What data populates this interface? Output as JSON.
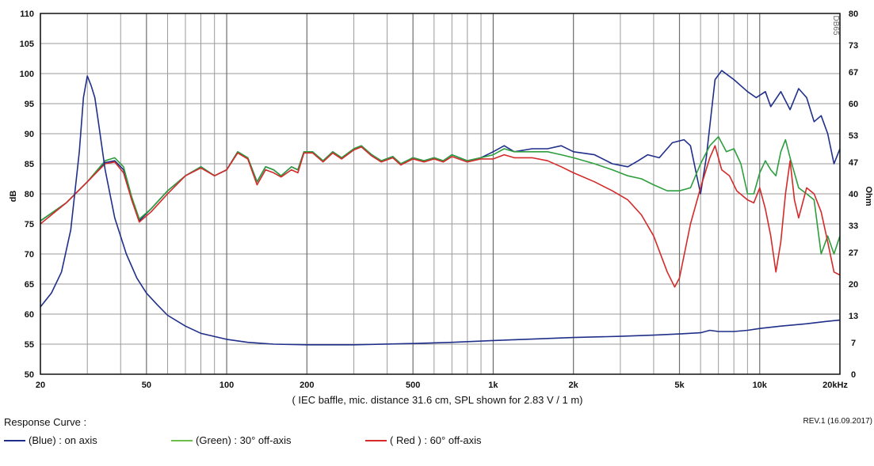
{
  "chart_data": {
    "type": "line",
    "x_scale": "log",
    "xlim": [
      20,
      20000
    ],
    "ylim": [
      50,
      110
    ],
    "y2lim": [
      0,
      80
    ],
    "xlabel": "( IEC baffle, mic. distance 31.6 cm, SPL shown for 2.83 V / 1 m)",
    "ylabel": "dB",
    "y2label": "Ohm",
    "watermark": "DB65",
    "grid": true,
    "x_ticks": [
      {
        "value": 20,
        "label": "20"
      },
      {
        "value": 50,
        "label": "50"
      },
      {
        "value": 100,
        "label": "100"
      },
      {
        "value": 200,
        "label": "200"
      },
      {
        "value": 500,
        "label": "500"
      },
      {
        "value": 1000,
        "label": "1k"
      },
      {
        "value": 2000,
        "label": "2k"
      },
      {
        "value": 5000,
        "label": "5k"
      },
      {
        "value": 10000,
        "label": "10k"
      },
      {
        "value": 20000,
        "label": "20kHz"
      }
    ],
    "x_minor_grid": [
      30,
      40,
      60,
      70,
      80,
      90,
      300,
      400,
      600,
      700,
      800,
      900,
      3000,
      4000,
      6000,
      7000,
      8000,
      9000
    ],
    "y_ticks": [
      {
        "value": 110,
        "label": "110"
      },
      {
        "value": 105,
        "label": "105"
      },
      {
        "value": 100,
        "label": "100"
      },
      {
        "value": 95,
        "label": "95"
      },
      {
        "value": 90,
        "label": "90"
      },
      {
        "value": 85,
        "label": "85"
      },
      {
        "value": 80,
        "label": "80"
      },
      {
        "value": 75,
        "label": "75"
      },
      {
        "value": 70,
        "label": "70"
      },
      {
        "value": 65,
        "label": "65"
      },
      {
        "value": 60,
        "label": "60"
      },
      {
        "value": 55,
        "label": "55"
      },
      {
        "value": 50,
        "label": "50"
      }
    ],
    "y2_ticks": [
      {
        "value": 80,
        "label": "80"
      },
      {
        "value": 73,
        "label": "73"
      },
      {
        "value": 67,
        "label": "67"
      },
      {
        "value": 60,
        "label": "60"
      },
      {
        "value": 53,
        "label": "53"
      },
      {
        "value": 47,
        "label": "47"
      },
      {
        "value": 40,
        "label": "40"
      },
      {
        "value": 33,
        "label": "33"
      },
      {
        "value": 27,
        "label": "27"
      },
      {
        "value": 20,
        "label": "20"
      },
      {
        "value": 13,
        "label": "13"
      },
      {
        "value": 7,
        "label": "7"
      },
      {
        "value": 0,
        "label": "0"
      }
    ],
    "series": [
      {
        "name": "(Blue)  : on axis",
        "color": "#1f2f8a",
        "axis": "left",
        "points": [
          [
            20,
            75.5
          ],
          [
            25,
            78.5
          ],
          [
            30,
            82
          ],
          [
            35,
            85.2
          ],
          [
            38,
            85.5
          ],
          [
            41,
            84
          ],
          [
            44,
            79
          ],
          [
            47,
            75.5
          ],
          [
            52,
            77.5
          ],
          [
            60,
            80.5
          ],
          [
            70,
            83
          ],
          [
            80,
            84.5
          ],
          [
            90,
            83
          ],
          [
            100,
            84
          ],
          [
            110,
            87
          ],
          [
            120,
            86
          ],
          [
            130,
            82
          ],
          [
            140,
            84.5
          ],
          [
            150,
            84
          ],
          [
            160,
            83
          ],
          [
            175,
            84.5
          ],
          [
            185,
            84
          ],
          [
            195,
            87
          ],
          [
            210,
            87
          ],
          [
            230,
            85.5
          ],
          [
            250,
            87
          ],
          [
            270,
            86
          ],
          [
            300,
            87.5
          ],
          [
            320,
            88
          ],
          [
            350,
            86.5
          ],
          [
            380,
            85.5
          ],
          [
            420,
            86.2
          ],
          [
            450,
            85
          ],
          [
            500,
            86
          ],
          [
            550,
            85.5
          ],
          [
            600,
            86
          ],
          [
            650,
            85.5
          ],
          [
            700,
            86.5
          ],
          [
            800,
            85.5
          ],
          [
            900,
            86
          ],
          [
            1000,
            87
          ],
          [
            1100,
            88
          ],
          [
            1200,
            87
          ],
          [
            1400,
            87.5
          ],
          [
            1600,
            87.5
          ],
          [
            1800,
            88
          ],
          [
            2000,
            87
          ],
          [
            2400,
            86.5
          ],
          [
            2800,
            85
          ],
          [
            3200,
            84.5
          ],
          [
            3500,
            85.5
          ],
          [
            3800,
            86.5
          ],
          [
            4200,
            86
          ],
          [
            4700,
            88.5
          ],
          [
            5200,
            89
          ],
          [
            5500,
            88
          ],
          [
            6000,
            80
          ],
          [
            6300,
            86
          ],
          [
            6800,
            99
          ],
          [
            7200,
            100.5
          ],
          [
            8000,
            99
          ],
          [
            9000,
            97
          ],
          [
            9700,
            96
          ],
          [
            10500,
            97
          ],
          [
            11000,
            94.5
          ],
          [
            12000,
            97
          ],
          [
            13000,
            94
          ],
          [
            14000,
            97.5
          ],
          [
            15000,
            96
          ],
          [
            16000,
            92
          ],
          [
            17000,
            93
          ],
          [
            18000,
            90
          ],
          [
            19000,
            85
          ],
          [
            20000,
            87.5
          ]
        ]
      },
      {
        "name": "(Green) : 30° off-axis",
        "color": "#2e9e3e",
        "axis": "left",
        "points": [
          [
            20,
            75.5
          ],
          [
            25,
            78.5
          ],
          [
            30,
            82
          ],
          [
            35,
            85.5
          ],
          [
            38,
            86
          ],
          [
            41,
            84.5
          ],
          [
            44,
            79.5
          ],
          [
            47,
            75.8
          ],
          [
            52,
            77.5
          ],
          [
            60,
            80.5
          ],
          [
            70,
            83
          ],
          [
            80,
            84.5
          ],
          [
            90,
            83
          ],
          [
            100,
            84
          ],
          [
            110,
            87
          ],
          [
            120,
            86
          ],
          [
            130,
            82
          ],
          [
            140,
            84.5
          ],
          [
            150,
            84
          ],
          [
            160,
            83
          ],
          [
            175,
            84.5
          ],
          [
            185,
            84
          ],
          [
            195,
            87
          ],
          [
            210,
            87
          ],
          [
            230,
            85.5
          ],
          [
            250,
            87
          ],
          [
            270,
            86
          ],
          [
            300,
            87.5
          ],
          [
            320,
            88
          ],
          [
            350,
            86.5
          ],
          [
            380,
            85.5
          ],
          [
            420,
            86.2
          ],
          [
            450,
            85
          ],
          [
            500,
            86
          ],
          [
            550,
            85.5
          ],
          [
            600,
            86
          ],
          [
            650,
            85.5
          ],
          [
            700,
            86.5
          ],
          [
            800,
            85.5
          ],
          [
            900,
            86
          ],
          [
            1000,
            86.5
          ],
          [
            1100,
            87.5
          ],
          [
            1200,
            87
          ],
          [
            1400,
            87
          ],
          [
            1600,
            87
          ],
          [
            1800,
            86.5
          ],
          [
            2000,
            86
          ],
          [
            2400,
            85
          ],
          [
            2800,
            84
          ],
          [
            3200,
            83
          ],
          [
            3600,
            82.5
          ],
          [
            4000,
            81.5
          ],
          [
            4500,
            80.5
          ],
          [
            5000,
            80.5
          ],
          [
            5500,
            81
          ],
          [
            6000,
            85
          ],
          [
            6500,
            88
          ],
          [
            7000,
            89.5
          ],
          [
            7500,
            87
          ],
          [
            8000,
            87.5
          ],
          [
            8500,
            85
          ],
          [
            9000,
            80
          ],
          [
            9500,
            80
          ],
          [
            10000,
            83.5
          ],
          [
            10500,
            85.5
          ],
          [
            11000,
            84
          ],
          [
            11500,
            83
          ],
          [
            12000,
            87
          ],
          [
            12500,
            89
          ],
          [
            13000,
            86
          ],
          [
            14000,
            81
          ],
          [
            15000,
            80
          ],
          [
            16000,
            79
          ],
          [
            17000,
            70
          ],
          [
            18000,
            73
          ],
          [
            19000,
            70
          ],
          [
            20000,
            73
          ]
        ]
      },
      {
        "name": "( Red ) : 60° off-axis",
        "color": "#d42a2a",
        "axis": "left",
        "points": [
          [
            20,
            75
          ],
          [
            25,
            78.5
          ],
          [
            30,
            82
          ],
          [
            35,
            85
          ],
          [
            38,
            85.3
          ],
          [
            41,
            83.5
          ],
          [
            44,
            79
          ],
          [
            47,
            75.3
          ],
          [
            52,
            77
          ],
          [
            60,
            80
          ],
          [
            70,
            83
          ],
          [
            80,
            84.3
          ],
          [
            90,
            83
          ],
          [
            100,
            84
          ],
          [
            110,
            86.8
          ],
          [
            120,
            85.8
          ],
          [
            130,
            81.5
          ],
          [
            140,
            84
          ],
          [
            150,
            83.5
          ],
          [
            160,
            82.8
          ],
          [
            175,
            84
          ],
          [
            185,
            83.5
          ],
          [
            195,
            86.8
          ],
          [
            210,
            86.8
          ],
          [
            230,
            85.3
          ],
          [
            250,
            86.8
          ],
          [
            270,
            85.8
          ],
          [
            300,
            87.3
          ],
          [
            320,
            87.8
          ],
          [
            350,
            86.3
          ],
          [
            380,
            85.3
          ],
          [
            420,
            86
          ],
          [
            450,
            84.8
          ],
          [
            500,
            85.8
          ],
          [
            550,
            85.3
          ],
          [
            600,
            85.8
          ],
          [
            650,
            85.3
          ],
          [
            700,
            86.2
          ],
          [
            800,
            85.3
          ],
          [
            900,
            85.8
          ],
          [
            1000,
            85.8
          ],
          [
            1100,
            86.5
          ],
          [
            1200,
            86
          ],
          [
            1400,
            86
          ],
          [
            1600,
            85.5
          ],
          [
            1800,
            84.5
          ],
          [
            2000,
            83.5
          ],
          [
            2400,
            82
          ],
          [
            2800,
            80.5
          ],
          [
            3200,
            79
          ],
          [
            3600,
            76.5
          ],
          [
            4000,
            73
          ],
          [
            4500,
            67
          ],
          [
            4800,
            64.5
          ],
          [
            5000,
            66
          ],
          [
            5500,
            75
          ],
          [
            6000,
            81
          ],
          [
            6500,
            86
          ],
          [
            6800,
            88
          ],
          [
            7200,
            84
          ],
          [
            7700,
            83
          ],
          [
            8200,
            80.5
          ],
          [
            9000,
            79
          ],
          [
            9500,
            78.5
          ],
          [
            10000,
            81
          ],
          [
            10500,
            77.5
          ],
          [
            11000,
            73
          ],
          [
            11500,
            67
          ],
          [
            12000,
            72
          ],
          [
            12500,
            80
          ],
          [
            13000,
            85.5
          ],
          [
            13500,
            79
          ],
          [
            14000,
            76
          ],
          [
            15000,
            81
          ],
          [
            16000,
            80
          ],
          [
            17000,
            77
          ],
          [
            18000,
            72
          ],
          [
            19000,
            67
          ],
          [
            20000,
            66.5
          ]
        ]
      },
      {
        "name": "(Blue)  : on axis",
        "color": "#1f2f8a",
        "axis": "left",
        "points": [
          [
            20,
            61.2
          ],
          [
            22,
            63.5
          ],
          [
            24,
            67
          ],
          [
            26,
            74
          ],
          [
            28,
            87
          ],
          [
            29,
            96
          ],
          [
            30,
            99.6
          ],
          [
            31,
            98
          ],
          [
            32,
            96
          ],
          [
            33,
            92
          ],
          [
            35,
            84
          ],
          [
            38,
            76
          ],
          [
            42,
            70
          ],
          [
            46,
            66
          ],
          [
            50,
            63.5
          ],
          [
            55,
            61.5
          ],
          [
            60,
            59.8
          ],
          [
            70,
            58
          ],
          [
            80,
            56.8
          ],
          [
            100,
            55.8
          ],
          [
            120,
            55.3
          ],
          [
            150,
            55
          ],
          [
            200,
            54.9
          ],
          [
            300,
            54.9
          ],
          [
            500,
            55.1
          ],
          [
            700,
            55.3
          ],
          [
            1000,
            55.6
          ],
          [
            1500,
            55.9
          ],
          [
            2000,
            56.1
          ],
          [
            3000,
            56.3
          ],
          [
            4000,
            56.5
          ],
          [
            5000,
            56.7
          ],
          [
            6000,
            56.9
          ],
          [
            6500,
            57.3
          ],
          [
            7000,
            57.1
          ],
          [
            8000,
            57.1
          ],
          [
            9000,
            57.3
          ],
          [
            10000,
            57.6
          ],
          [
            12000,
            58
          ],
          [
            15000,
            58.4
          ],
          [
            18000,
            58.8
          ],
          [
            20000,
            59
          ]
        ]
      }
    ]
  },
  "footer": {
    "legend_title": "Response Curve :",
    "revision": "REV.1 (16.09.2017)",
    "legend": [
      {
        "label": "(Blue)  : on axis",
        "color": "#1f2f8a"
      },
      {
        "label": "(Green) : 30° off-axis",
        "color": "#6cc04a"
      },
      {
        "label": "( Red ) : 60° off-axis",
        "color": "#d42a2a"
      }
    ]
  }
}
